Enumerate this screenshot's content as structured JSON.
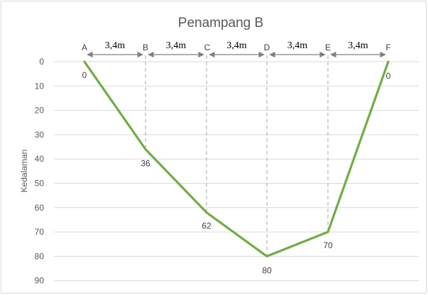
{
  "chart_data": {
    "type": "line",
    "title": "Penampang B",
    "xlabel": "",
    "ylabel": "Kedalaman",
    "y_axis": {
      "min": 0,
      "max": 90,
      "step": 10,
      "reversed": true,
      "ticks": [
        0,
        10,
        20,
        30,
        40,
        50,
        60,
        70,
        80,
        90
      ]
    },
    "grid": true,
    "points": [
      "A",
      "B",
      "C",
      "D",
      "E",
      "F"
    ],
    "series": [
      {
        "values": [
          0,
          36,
          62,
          80,
          70,
          0
        ],
        "color": "#70ad47"
      }
    ],
    "data_labels": [
      "0",
      "36",
      "62",
      "80",
      "70",
      "0"
    ],
    "segment_labels": [
      "3,4m",
      "3,4m",
      "3,4m",
      "3,4m",
      "3,4m"
    ]
  }
}
